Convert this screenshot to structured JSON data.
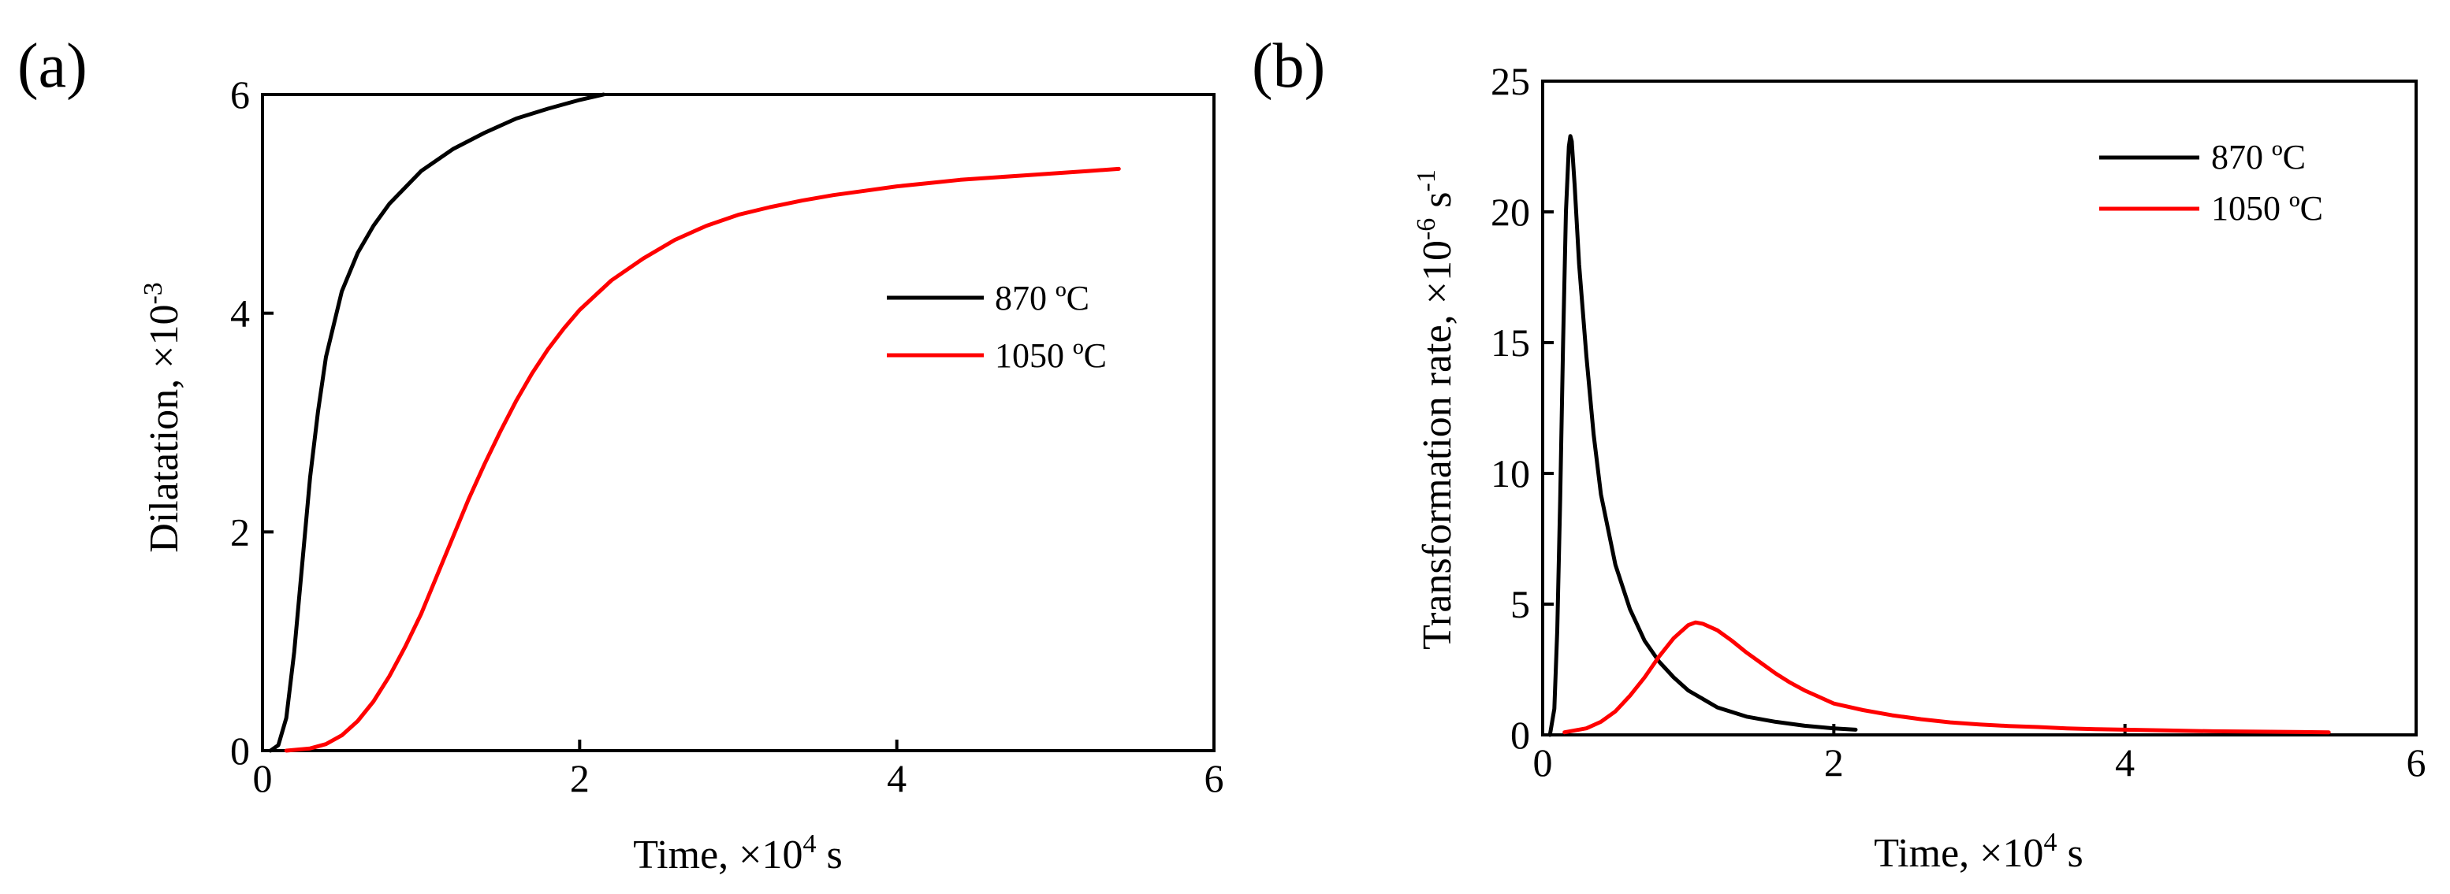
{
  "chart_data": [
    {
      "panel_label": "(a)",
      "type": "line",
      "xlabel": "Time, ×10",
      "xlabel_sup": "4",
      "xlabel_tail": " s",
      "ylabel": "Dilatation, ×10",
      "ylabel_sup": "-3",
      "xlim": [
        0,
        6
      ],
      "ylim": [
        0,
        6
      ],
      "xticks": [
        0,
        2,
        4,
        6
      ],
      "yticks": [
        0,
        2,
        4,
        6
      ],
      "legend_position": "center-right",
      "series": [
        {
          "name": "870 ºC",
          "color": "#000000",
          "points": [
            [
              0.05,
              0
            ],
            [
              0.1,
              0.05
            ],
            [
              0.15,
              0.3
            ],
            [
              0.2,
              0.9
            ],
            [
              0.25,
              1.7
            ],
            [
              0.3,
              2.5
            ],
            [
              0.35,
              3.1
            ],
            [
              0.4,
              3.6
            ],
            [
              0.5,
              4.2
            ],
            [
              0.6,
              4.55
            ],
            [
              0.7,
              4.8
            ],
            [
              0.8,
              5.0
            ],
            [
              1.0,
              5.3
            ],
            [
              1.2,
              5.5
            ],
            [
              1.4,
              5.65
            ],
            [
              1.6,
              5.78
            ],
            [
              1.8,
              5.87
            ],
            [
              2.0,
              5.95
            ],
            [
              2.15,
              6.0
            ]
          ]
        },
        {
          "name": "1050 ºC",
          "color": "#ff0000",
          "points": [
            [
              0.15,
              0
            ],
            [
              0.3,
              0.02
            ],
            [
              0.4,
              0.06
            ],
            [
              0.5,
              0.14
            ],
            [
              0.6,
              0.27
            ],
            [
              0.7,
              0.45
            ],
            [
              0.8,
              0.68
            ],
            [
              0.9,
              0.95
            ],
            [
              1.0,
              1.25
            ],
            [
              1.1,
              1.6
            ],
            [
              1.2,
              1.95
            ],
            [
              1.3,
              2.3
            ],
            [
              1.4,
              2.62
            ],
            [
              1.5,
              2.92
            ],
            [
              1.6,
              3.2
            ],
            [
              1.7,
              3.45
            ],
            [
              1.8,
              3.67
            ],
            [
              1.9,
              3.86
            ],
            [
              2.0,
              4.03
            ],
            [
              2.2,
              4.3
            ],
            [
              2.4,
              4.5
            ],
            [
              2.6,
              4.67
            ],
            [
              2.8,
              4.8
            ],
            [
              3.0,
              4.9
            ],
            [
              3.2,
              4.97
            ],
            [
              3.4,
              5.03
            ],
            [
              3.6,
              5.08
            ],
            [
              3.8,
              5.12
            ],
            [
              4.0,
              5.16
            ],
            [
              4.2,
              5.19
            ],
            [
              4.4,
              5.22
            ],
            [
              4.6,
              5.24
            ],
            [
              4.8,
              5.26
            ],
            [
              5.0,
              5.28
            ],
            [
              5.2,
              5.3
            ],
            [
              5.4,
              5.32
            ]
          ]
        }
      ]
    },
    {
      "panel_label": "(b)",
      "type": "line",
      "xlabel": "Time, ×10",
      "xlabel_sup": "4",
      "xlabel_tail": " s",
      "ylabel": "Transformation rate, ×10",
      "ylabel_sup": "-6",
      "ylabel_tail": " s",
      "ylabel_tail_sup": "-1",
      "xlim": [
        0,
        6
      ],
      "ylim": [
        0,
        25
      ],
      "xticks": [
        0,
        2,
        4,
        6
      ],
      "yticks": [
        0,
        5,
        10,
        15,
        20,
        25
      ],
      "legend_position": "top-right",
      "series": [
        {
          "name": "870 ºC",
          "color": "#000000",
          "points": [
            [
              0.05,
              0
            ],
            [
              0.08,
              1
            ],
            [
              0.1,
              4
            ],
            [
              0.12,
              9
            ],
            [
              0.14,
              15
            ],
            [
              0.16,
              20
            ],
            [
              0.18,
              22.5
            ],
            [
              0.19,
              22.9
            ],
            [
              0.2,
              22.7
            ],
            [
              0.22,
              21
            ],
            [
              0.25,
              18
            ],
            [
              0.3,
              14.5
            ],
            [
              0.35,
              11.5
            ],
            [
              0.4,
              9.2
            ],
            [
              0.5,
              6.5
            ],
            [
              0.6,
              4.8
            ],
            [
              0.7,
              3.6
            ],
            [
              0.8,
              2.8
            ],
            [
              0.9,
              2.2
            ],
            [
              1.0,
              1.7
            ],
            [
              1.2,
              1.05
            ],
            [
              1.4,
              0.7
            ],
            [
              1.6,
              0.5
            ],
            [
              1.8,
              0.35
            ],
            [
              2.0,
              0.25
            ],
            [
              2.15,
              0.2
            ]
          ]
        },
        {
          "name": "1050 ºC",
          "color": "#ff0000",
          "points": [
            [
              0.15,
              0.1
            ],
            [
              0.3,
              0.25
            ],
            [
              0.4,
              0.5
            ],
            [
              0.5,
              0.9
            ],
            [
              0.6,
              1.5
            ],
            [
              0.7,
              2.2
            ],
            [
              0.8,
              3.0
            ],
            [
              0.9,
              3.7
            ],
            [
              1.0,
              4.2
            ],
            [
              1.05,
              4.3
            ],
            [
              1.1,
              4.25
            ],
            [
              1.2,
              4.0
            ],
            [
              1.3,
              3.6
            ],
            [
              1.4,
              3.15
            ],
            [
              1.5,
              2.75
            ],
            [
              1.6,
              2.35
            ],
            [
              1.7,
              2.0
            ],
            [
              1.8,
              1.7
            ],
            [
              1.9,
              1.45
            ],
            [
              2.0,
              1.2
            ],
            [
              2.2,
              0.95
            ],
            [
              2.4,
              0.75
            ],
            [
              2.6,
              0.6
            ],
            [
              2.8,
              0.48
            ],
            [
              3.0,
              0.4
            ],
            [
              3.2,
              0.34
            ],
            [
              3.4,
              0.3
            ],
            [
              3.6,
              0.25
            ],
            [
              3.8,
              0.22
            ],
            [
              4.0,
              0.2
            ],
            [
              4.3,
              0.17
            ],
            [
              4.6,
              0.14
            ],
            [
              5.0,
              0.12
            ],
            [
              5.4,
              0.1
            ]
          ]
        }
      ]
    }
  ]
}
